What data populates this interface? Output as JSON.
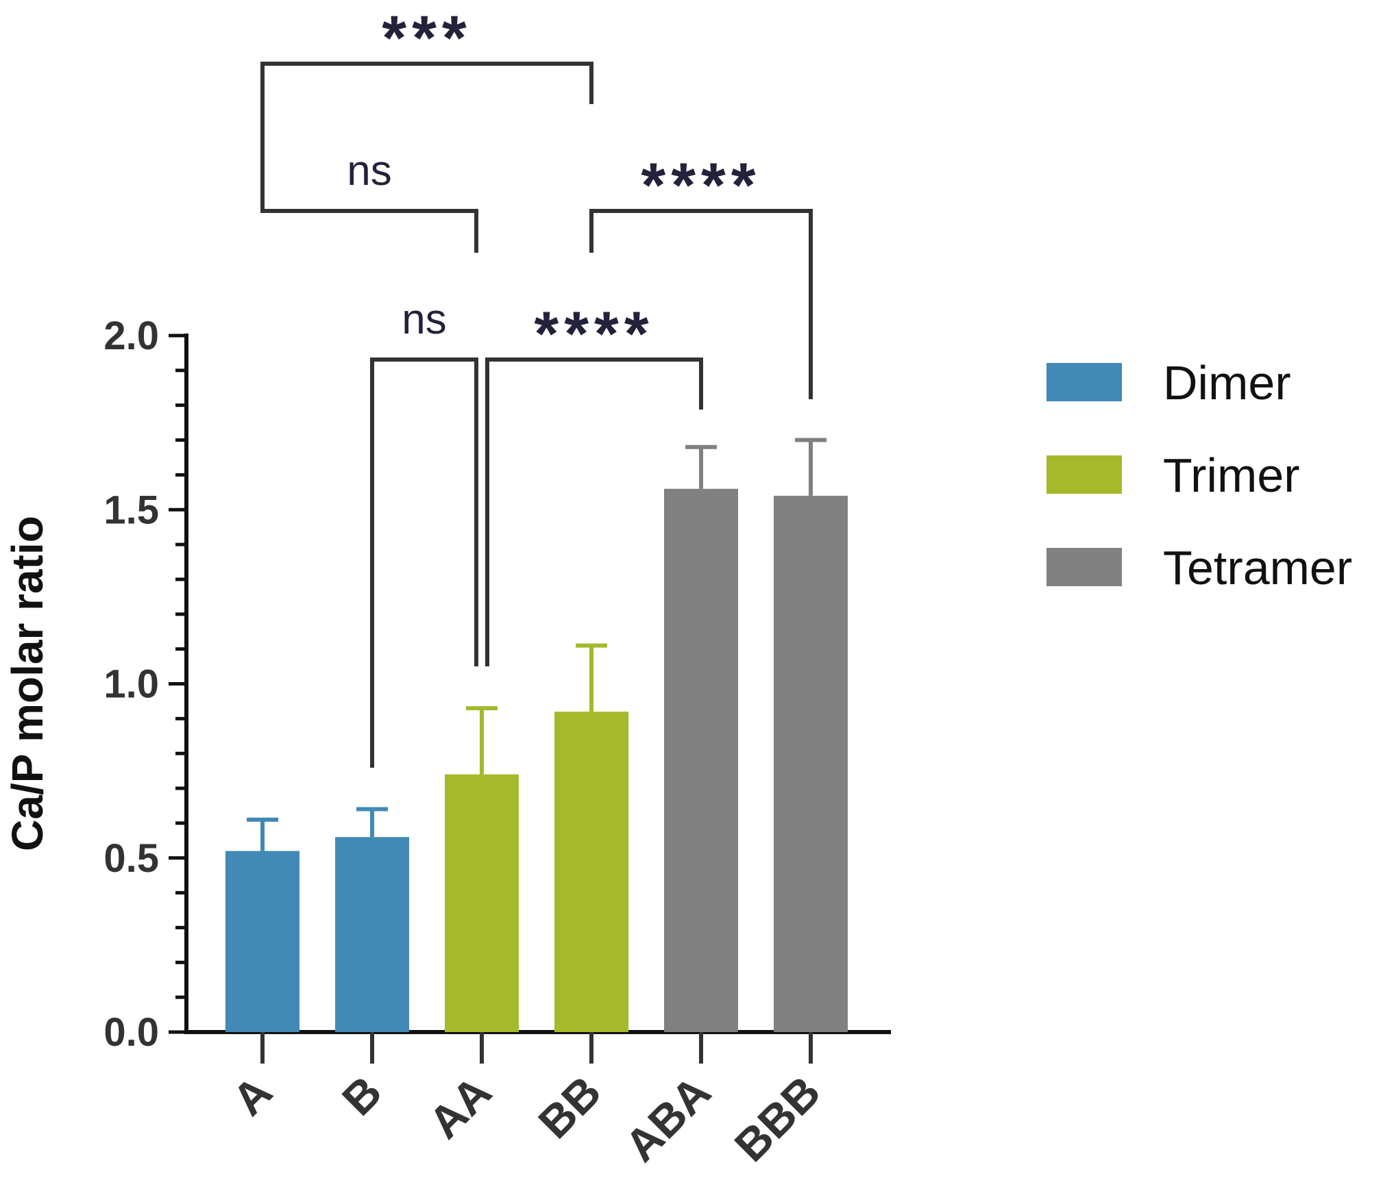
{
  "chart_data": {
    "type": "bar",
    "categories": [
      "A",
      "B",
      "AA",
      "BB",
      "ABA",
      "BBB"
    ],
    "series": [
      {
        "name": "Dimer",
        "color": "#4289b5",
        "values": [
          0.52,
          0.56,
          null,
          null,
          null,
          null
        ],
        "errors": [
          0.09,
          0.08,
          null,
          null,
          null,
          null
        ]
      },
      {
        "name": "Trimer",
        "color": "#a5b92b",
        "values": [
          null,
          null,
          0.74,
          0.92,
          null,
          null
        ],
        "errors": [
          null,
          null,
          0.19,
          0.19,
          null,
          null
        ]
      },
      {
        "name": "Tetramer",
        "color": "#808080",
        "values": [
          null,
          null,
          null,
          null,
          1.56,
          1.54
        ],
        "errors": [
          null,
          null,
          null,
          null,
          0.12,
          0.16
        ]
      }
    ],
    "ylabel": "Ca/P molar ratio",
    "xlabel": "",
    "ylim": [
      0,
      2.0
    ],
    "yticks": [
      "0.0",
      "0.5",
      "1.0",
      "1.5",
      "2.0"
    ],
    "legend_position": "right",
    "significance": [
      {
        "from": "A",
        "to": "BB",
        "label": "***"
      },
      {
        "from": "A",
        "to": "AA",
        "label": "ns"
      },
      {
        "from": "BB",
        "to": "BBB",
        "label": "****"
      },
      {
        "from": "B",
        "to": "AA",
        "label": "ns"
      },
      {
        "from": "AA",
        "to": "ABA",
        "label": "****"
      }
    ]
  }
}
